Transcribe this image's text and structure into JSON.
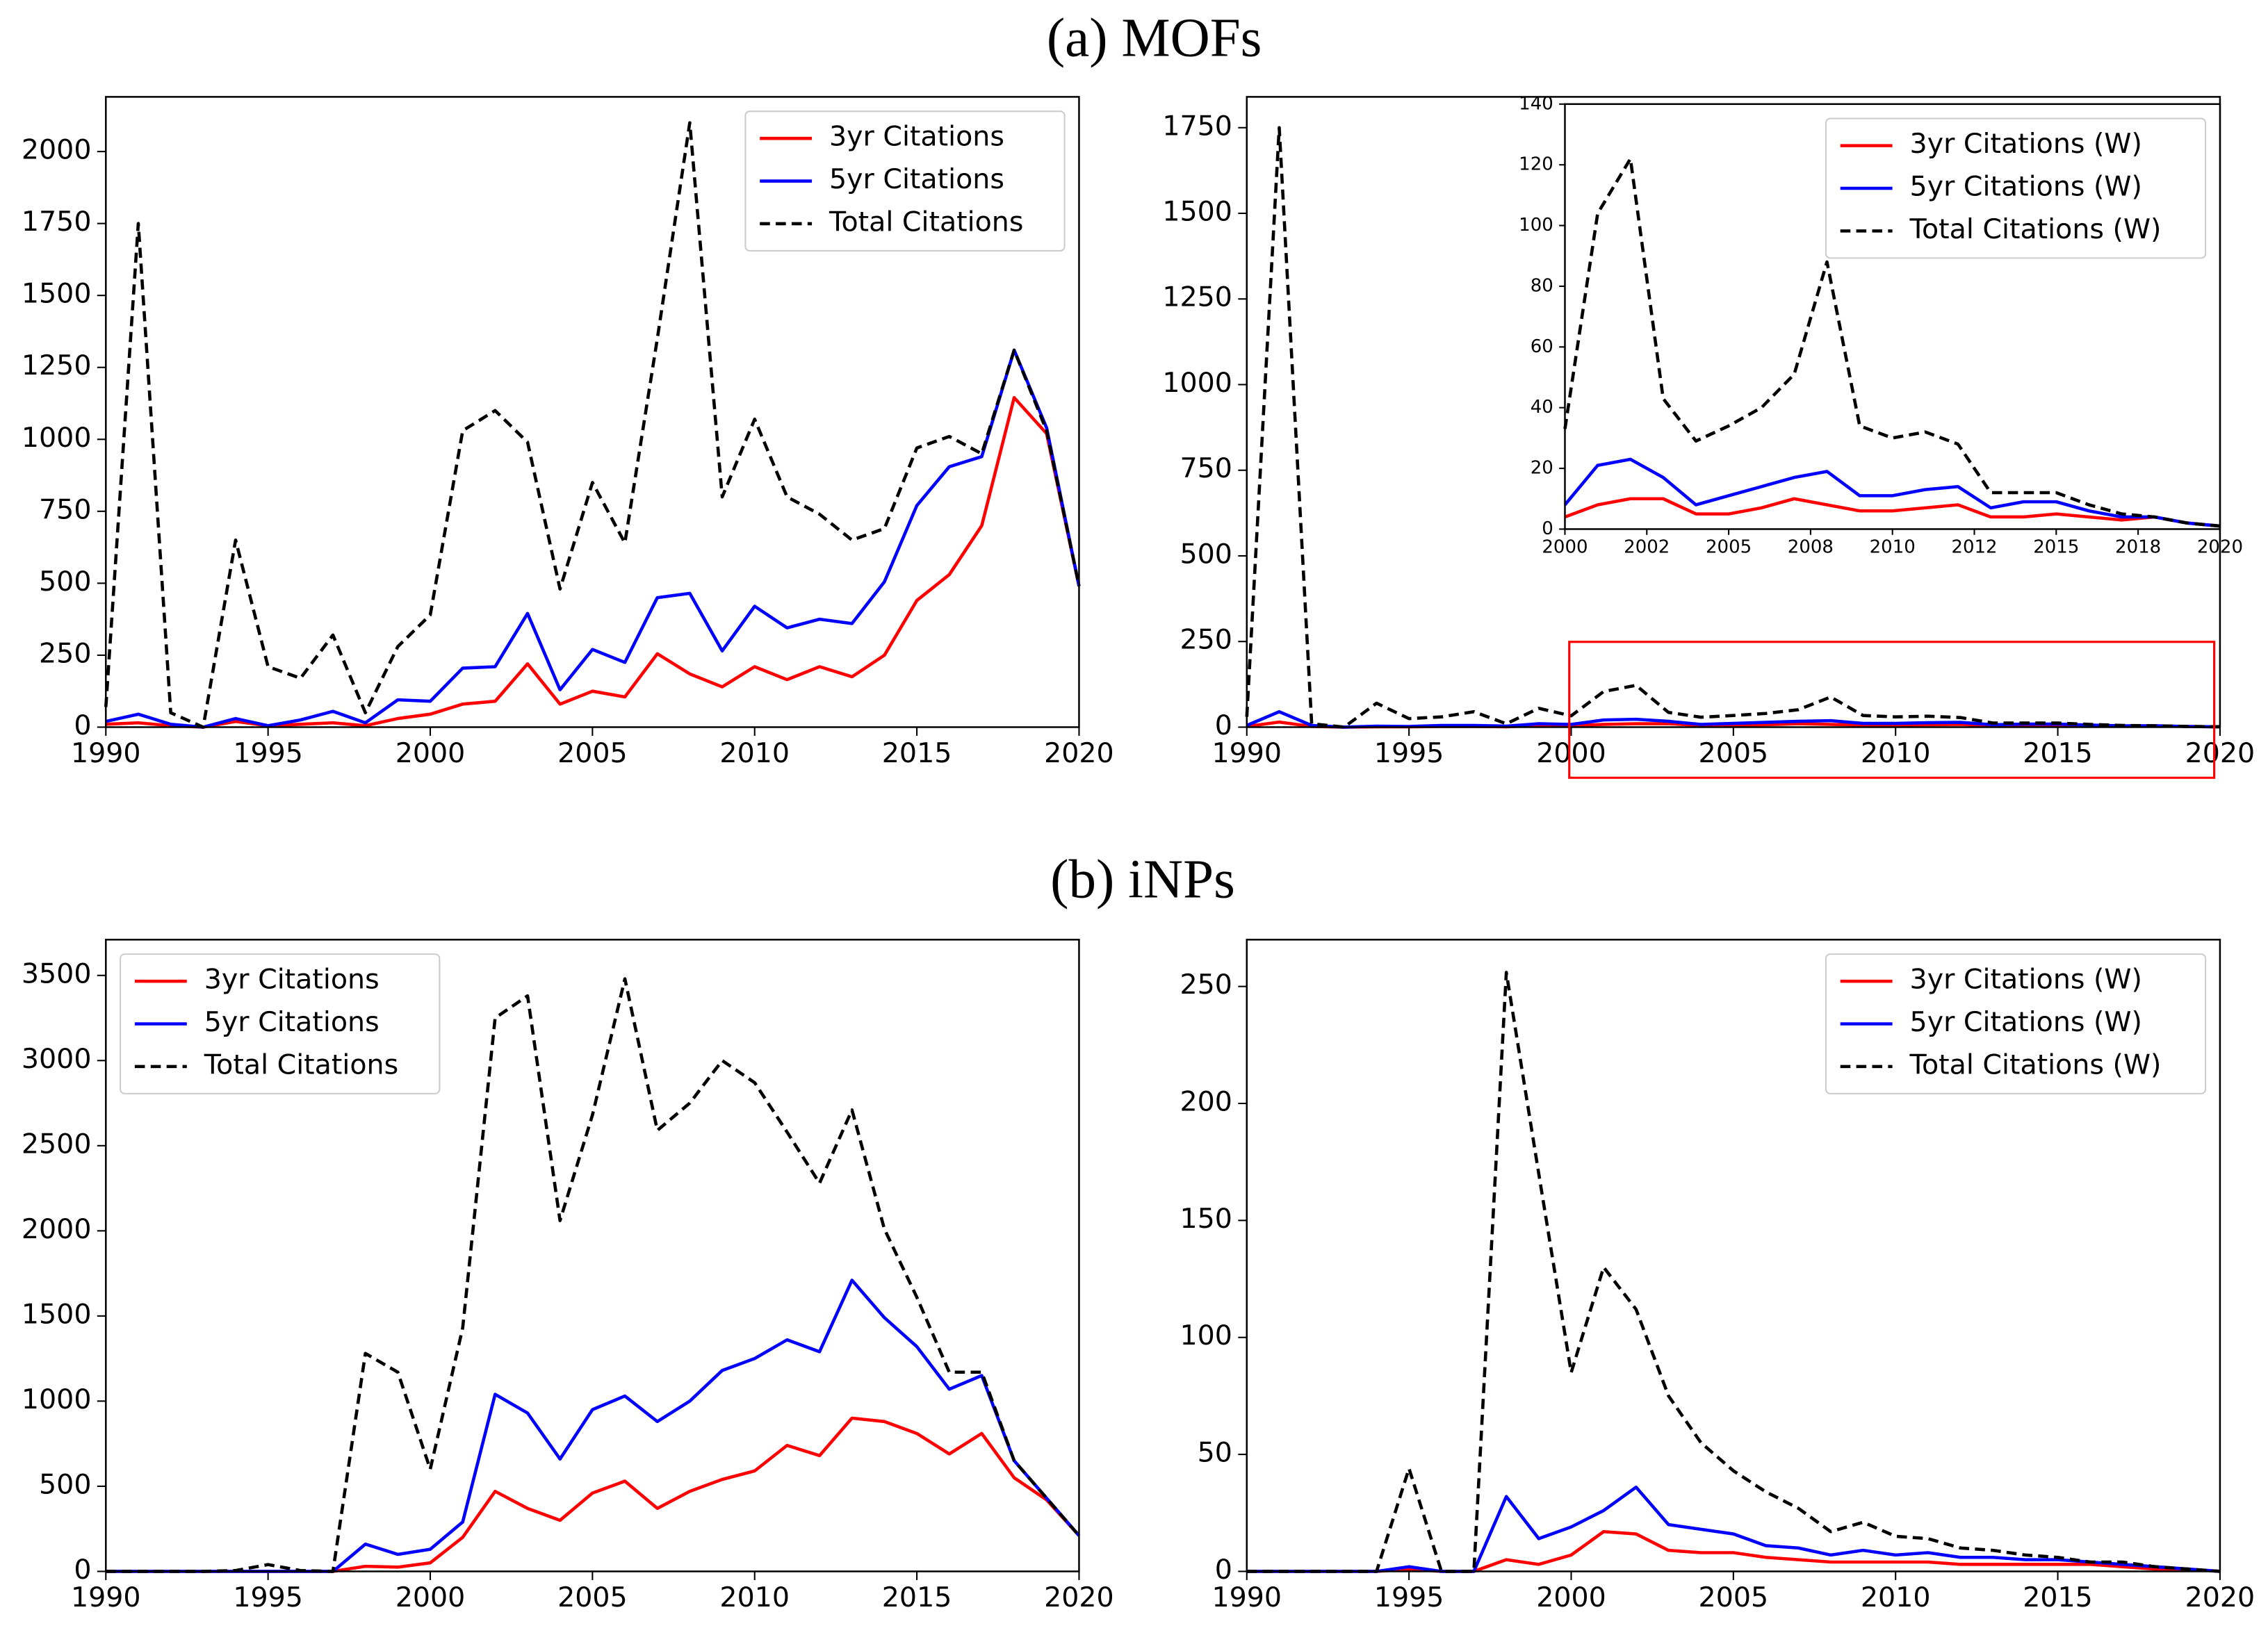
{
  "panel_titles": [
    "(a) MOFs",
    "(b) iNPs"
  ],
  "chart_data": [
    {
      "type": "line",
      "x": [
        1990,
        1991,
        1992,
        1993,
        1994,
        1995,
        1996,
        1997,
        1998,
        1999,
        2000,
        2001,
        2002,
        2003,
        2004,
        2005,
        2006,
        2007,
        2008,
        2009,
        2010,
        2011,
        2012,
        2013,
        2014,
        2015,
        2016,
        2017,
        2018,
        2019,
        2020
      ],
      "xlim": [
        1990,
        2020
      ],
      "xticks": [
        1990,
        1995,
        2000,
        2005,
        2010,
        2015,
        2020
      ],
      "ylim": [
        0,
        2190
      ],
      "yticks": [
        0,
        250,
        500,
        750,
        1000,
        1250,
        1500,
        1750,
        2000
      ],
      "legend": "upper right",
      "series": [
        {
          "name": "3yr Citations",
          "color": "#ff0000",
          "linestyle": "solid",
          "values": [
            10,
            15,
            5,
            0,
            20,
            5,
            10,
            15,
            5,
            30,
            45,
            80,
            90,
            220,
            80,
            125,
            105,
            255,
            185,
            140,
            210,
            165,
            210,
            175,
            250,
            440,
            530,
            700,
            1145,
            1020,
            490
          ]
        },
        {
          "name": "5yr Citations",
          "color": "#0000ff",
          "linestyle": "solid",
          "values": [
            20,
            45,
            10,
            0,
            30,
            5,
            25,
            55,
            15,
            95,
            90,
            205,
            210,
            395,
            130,
            270,
            225,
            450,
            465,
            265,
            420,
            345,
            375,
            360,
            505,
            770,
            905,
            940,
            1310,
            1040,
            490
          ]
        },
        {
          "name": "Total Citations",
          "color": "#000000",
          "linestyle": "dashed",
          "values": [
            70,
            1750,
            50,
            0,
            650,
            210,
            170,
            320,
            50,
            280,
            390,
            1030,
            1100,
            990,
            480,
            850,
            640,
            1350,
            2100,
            800,
            1070,
            800,
            740,
            650,
            690,
            970,
            1010,
            950,
            1310,
            1030,
            490
          ]
        }
      ]
    },
    {
      "type": "line",
      "x": [
        1990,
        1991,
        1992,
        1993,
        1994,
        1995,
        1996,
        1997,
        1998,
        1999,
        2000,
        2001,
        2002,
        2003,
        2004,
        2005,
        2006,
        2007,
        2008,
        2009,
        2010,
        2011,
        2012,
        2013,
        2014,
        2015,
        2016,
        2017,
        2018,
        2019,
        2020
      ],
      "xlim": [
        1990,
        2020
      ],
      "xticks": [
        1990,
        1995,
        2000,
        2005,
        2010,
        2015,
        2020
      ],
      "ylim": [
        0,
        1840
      ],
      "yticks": [
        0,
        250,
        500,
        750,
        1000,
        1250,
        1500,
        1750
      ],
      "series": [
        {
          "color": "#ff0000",
          "linestyle": "solid",
          "values": [
            2,
            15,
            2,
            0,
            1,
            1,
            2,
            2,
            1,
            5,
            4,
            8,
            10,
            10,
            5,
            5,
            7,
            10,
            8,
            6,
            6,
            7,
            8,
            4,
            4,
            5,
            4,
            3,
            4,
            2,
            1
          ]
        },
        {
          "color": "#0000ff",
          "linestyle": "solid",
          "values": [
            5,
            45,
            5,
            0,
            3,
            2,
            5,
            5,
            3,
            10,
            8,
            21,
            23,
            17,
            8,
            11,
            14,
            17,
            19,
            11,
            11,
            13,
            14,
            7,
            9,
            9,
            6,
            4,
            4,
            2,
            1
          ]
        },
        {
          "color": "#000000",
          "linestyle": "dashed",
          "values": [
            30,
            1750,
            10,
            0,
            70,
            25,
            30,
            45,
            10,
            55,
            33,
            104,
            122,
            43,
            29,
            34,
            40,
            51,
            88,
            34,
            30,
            32,
            28,
            12,
            12,
            12,
            8,
            5,
            4,
            2,
            1
          ]
        }
      ]
    },
    {
      "type": "line",
      "x": [
        2000,
        2001,
        2002,
        2003,
        2004,
        2005,
        2006,
        2007,
        2008,
        2009,
        2010,
        2011,
        2012,
        2013,
        2014,
        2015,
        2016,
        2017,
        2018,
        2019,
        2020
      ],
      "xlim": [
        2000,
        2020
      ],
      "xticks": [
        2000,
        {
          "value": 2002.5,
          "label": "2002"
        },
        2005,
        {
          "value": 2007.5,
          "label": "2008"
        },
        2010,
        {
          "value": 2012.5,
          "label": "2012"
        },
        2015,
        {
          "value": 2017.5,
          "label": "2018"
        },
        2020
      ],
      "ylim": [
        0,
        140
      ],
      "yticks": [
        0,
        20,
        40,
        60,
        80,
        100,
        120,
        140
      ],
      "legend": "upper right",
      "series": [
        {
          "name": "3yr Citations (W)",
          "color": "#ff0000",
          "linestyle": "solid",
          "values": [
            4,
            8,
            10,
            10,
            5,
            5,
            7,
            10,
            8,
            6,
            6,
            7,
            8,
            4,
            4,
            5,
            4,
            3,
            4,
            2,
            1
          ]
        },
        {
          "name": "5yr Citations (W)",
          "color": "#0000ff",
          "linestyle": "solid",
          "values": [
            8,
            21,
            23,
            17,
            8,
            11,
            14,
            17,
            19,
            11,
            11,
            13,
            14,
            7,
            9,
            9,
            6,
            4,
            4,
            2,
            1
          ]
        },
        {
          "name": "Total Citations (W)",
          "color": "#000000",
          "linestyle": "dashed",
          "values": [
            33,
            104,
            122,
            43,
            29,
            34,
            40,
            51,
            88,
            34,
            30,
            32,
            28,
            12,
            12,
            12,
            8,
            5,
            4,
            2,
            1
          ]
        }
      ]
    },
    {
      "type": "line",
      "x": [
        1990,
        1991,
        1992,
        1993,
        1994,
        1995,
        1996,
        1997,
        1998,
        1999,
        2000,
        2001,
        2002,
        2003,
        2004,
        2005,
        2006,
        2007,
        2008,
        2009,
        2010,
        2011,
        2012,
        2013,
        2014,
        2015,
        2016,
        2017,
        2018,
        2019,
        2020
      ],
      "xlim": [
        1990,
        2020
      ],
      "xticks": [
        1990,
        1995,
        2000,
        2005,
        2010,
        2015,
        2020
      ],
      "ylim": [
        0,
        3710
      ],
      "yticks": [
        0,
        500,
        1000,
        1500,
        2000,
        2500,
        3000,
        3500
      ],
      "legend": "upper left",
      "series": [
        {
          "name": "3yr Citations",
          "color": "#ff0000",
          "linestyle": "solid",
          "values": [
            0,
            0,
            0,
            0,
            0,
            0,
            0,
            0,
            30,
            25,
            50,
            200,
            470,
            370,
            300,
            460,
            530,
            370,
            470,
            540,
            590,
            740,
            680,
            900,
            880,
            810,
            690,
            810,
            550,
            420,
            210
          ]
        },
        {
          "name": "5yr Citations",
          "color": "#0000ff",
          "linestyle": "solid",
          "values": [
            0,
            0,
            0,
            0,
            0,
            0,
            0,
            0,
            160,
            100,
            130,
            290,
            1040,
            930,
            660,
            950,
            1030,
            880,
            1000,
            1180,
            1250,
            1360,
            1290,
            1710,
            1490,
            1320,
            1070,
            1150,
            650,
            430,
            210
          ]
        },
        {
          "name": "Total Citations",
          "color": "#000000",
          "linestyle": "dashed",
          "values": [
            0,
            0,
            0,
            0,
            5,
            40,
            5,
            0,
            1280,
            1170,
            600,
            1430,
            3250,
            3380,
            2060,
            2680,
            3480,
            2590,
            2750,
            3000,
            2870,
            2580,
            2280,
            2710,
            2010,
            1610,
            1170,
            1170,
            650,
            430,
            210
          ]
        }
      ]
    },
    {
      "type": "line",
      "x": [
        1990,
        1991,
        1992,
        1993,
        1994,
        1995,
        1996,
        1997,
        1998,
        1999,
        2000,
        2001,
        2002,
        2003,
        2004,
        2005,
        2006,
        2007,
        2008,
        2009,
        2010,
        2011,
        2012,
        2013,
        2014,
        2015,
        2016,
        2017,
        2018,
        2019,
        2020
      ],
      "xlim": [
        1990,
        2020
      ],
      "xticks": [
        1990,
        1995,
        2000,
        2005,
        2010,
        2015,
        2020
      ],
      "ylim": [
        0,
        270
      ],
      "yticks": [
        0,
        50,
        100,
        150,
        200,
        250
      ],
      "legend": "upper right",
      "series": [
        {
          "name": "3yr Citations (W)",
          "color": "#ff0000",
          "linestyle": "solid",
          "values": [
            0,
            0,
            0,
            0,
            0,
            1,
            0,
            0,
            5,
            3,
            7,
            17,
            16,
            9,
            8,
            8,
            6,
            5,
            4,
            4,
            4,
            4,
            3,
            3,
            3,
            3,
            3,
            2,
            1,
            1,
            0
          ]
        },
        {
          "name": "5yr Citations (W)",
          "color": "#0000ff",
          "linestyle": "solid",
          "values": [
            0,
            0,
            0,
            0,
            0,
            2,
            0,
            0,
            32,
            14,
            19,
            26,
            36,
            20,
            18,
            16,
            11,
            10,
            7,
            9,
            7,
            8,
            6,
            6,
            5,
            5,
            4,
            3,
            2,
            1,
            0
          ]
        },
        {
          "name": "Total Citations (W)",
          "color": "#000000",
          "linestyle": "dashed",
          "values": [
            0,
            0,
            0,
            0,
            0,
            44,
            0,
            0,
            256,
            170,
            85,
            130,
            112,
            75,
            55,
            43,
            34,
            27,
            17,
            21,
            15,
            14,
            10,
            9,
            7,
            6,
            4,
            4,
            2,
            1,
            0
          ]
        }
      ]
    }
  ]
}
